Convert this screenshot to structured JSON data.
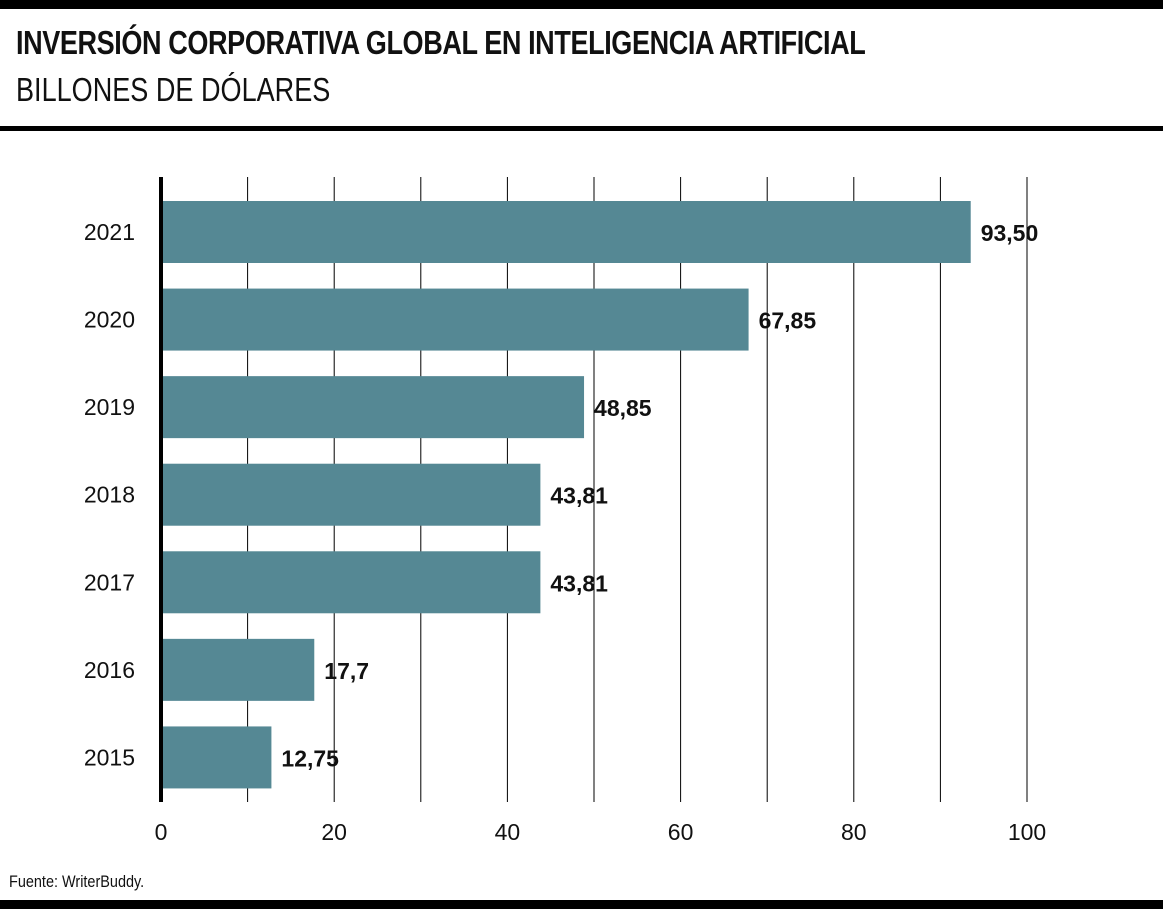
{
  "title": "INVERSIÓN CORPORATIVA GLOBAL EN INTELIGENCIA ARTIFICIAL",
  "subtitle": "BILLONES DE DÓLARES",
  "source": "Fuente: WriterBuddy.",
  "colors": {
    "bar": "#558894",
    "rule": "#000000",
    "grid": "#000000"
  },
  "chart_data": {
    "type": "bar",
    "orientation": "horizontal",
    "title": "INVERSIÓN CORPORATIVA GLOBAL EN INTELIGENCIA ARTIFICIAL",
    "subtitle": "BILLONES DE DÓLARES",
    "categories": [
      "2021",
      "2020",
      "2019",
      "2018",
      "2017",
      "2016",
      "2015"
    ],
    "values": [
      93.5,
      67.85,
      48.85,
      43.81,
      43.81,
      17.7,
      12.75
    ],
    "value_labels": [
      "93,50",
      "67,85",
      "48,85",
      "43,81",
      "43,81",
      "17,7",
      "12,75"
    ],
    "xlim": [
      0,
      100
    ],
    "x_ticks": [
      0,
      20,
      40,
      60,
      80,
      100
    ],
    "x_tick_labels": [
      "0",
      "20",
      "40",
      "60",
      "80",
      "100"
    ],
    "grid_step": 10,
    "grid": true,
    "xlabel": "",
    "ylabel": ""
  }
}
